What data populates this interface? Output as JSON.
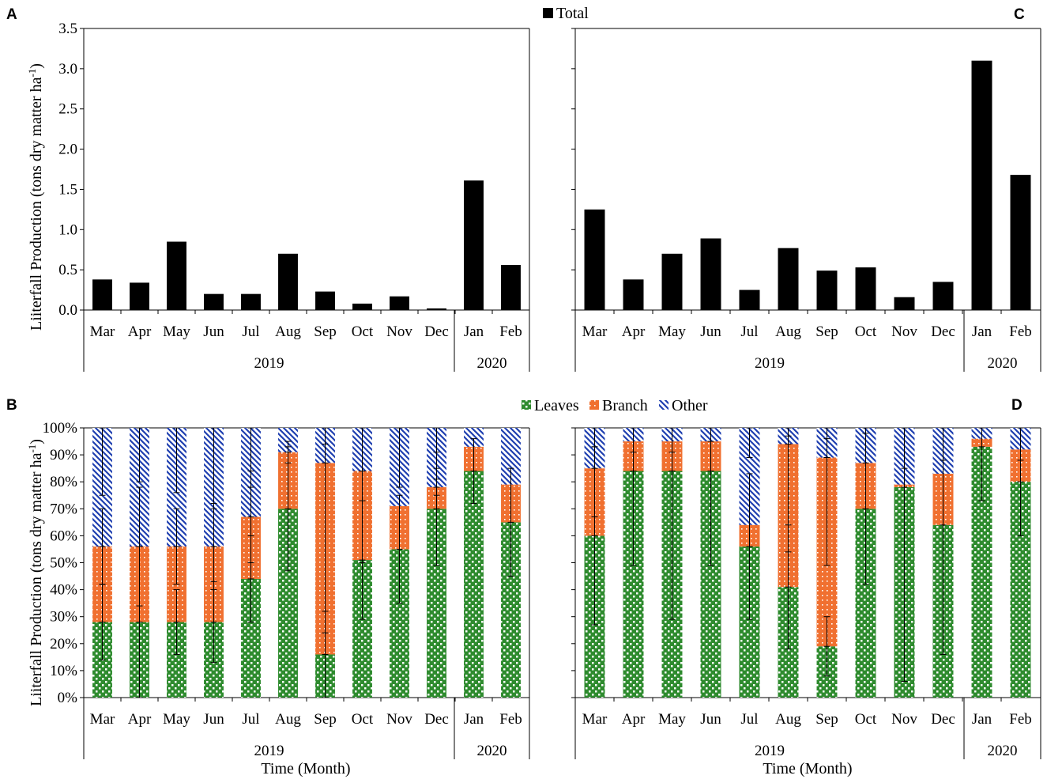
{
  "colors": {
    "total": "#000000",
    "leaves": "#2e8b2e",
    "branch": "#f07030",
    "other": "#1f3fb0",
    "axis": "#000000"
  },
  "legend_top": {
    "total": "Total"
  },
  "legend_bottom": {
    "leaves": "Leaves",
    "branch": "Branch",
    "other": "Other"
  },
  "y_label": "Liiterfall Production (tons dry matter ha",
  "y_label_sup": "-1",
  "y_label_close": ")",
  "x_label": "Time (Month)",
  "years": [
    "2019",
    "2020"
  ],
  "chart_data": [
    {
      "panel": "A",
      "type": "bar",
      "categories": [
        "Mar",
        "Apr",
        "May",
        "Jun",
        "Jul",
        "Aug",
        "Sep",
        "Oct",
        "Nov",
        "Dec",
        "Jan",
        "Feb"
      ],
      "series": [
        {
          "name": "Total",
          "values": [
            0.38,
            0.34,
            0.85,
            0.2,
            0.2,
            0.7,
            0.23,
            0.08,
            0.17,
            0.02,
            1.61,
            0.56
          ]
        }
      ],
      "ylim": [
        0,
        3.5
      ],
      "yticks": [
        "0.0",
        "0.5",
        "1.0",
        "1.5",
        "2.0",
        "2.5",
        "3.0",
        "3.5"
      ],
      "ylabel": "Liiterfall Production (tons dry matter ha-1)",
      "groups": [
        "2019",
        "2020"
      ]
    },
    {
      "panel": "C",
      "type": "bar",
      "categories": [
        "Mar",
        "Apr",
        "May",
        "Jun",
        "Jul",
        "Aug",
        "Sep",
        "Oct",
        "Nov",
        "Dec",
        "Jan",
        "Feb"
      ],
      "series": [
        {
          "name": "Total",
          "values": [
            1.25,
            0.38,
            0.7,
            0.89,
            0.25,
            0.77,
            0.49,
            0.53,
            0.16,
            0.35,
            3.1,
            1.68
          ]
        }
      ],
      "ylim": [
        0,
        3.5
      ],
      "groups": [
        "2019",
        "2020"
      ]
    },
    {
      "panel": "B",
      "type": "bar",
      "stacked": true,
      "categories": [
        "Mar",
        "Apr",
        "May",
        "Jun",
        "Jul",
        "Aug",
        "Sep",
        "Oct",
        "Nov",
        "Dec",
        "Jan",
        "Feb"
      ],
      "series": [
        {
          "name": "Leaves",
          "values": [
            28,
            28,
            28,
            28,
            44,
            70,
            16,
            51,
            55,
            70,
            84,
            65
          ],
          "error": [
            14,
            28,
            12,
            15,
            16,
            23,
            16,
            22,
            20,
            21,
            12,
            20
          ]
        },
        {
          "name": "Branch",
          "values": [
            28,
            28,
            28,
            28,
            23,
            21,
            71,
            33,
            16,
            8,
            9,
            14
          ],
          "error": [
            14,
            22,
            14,
            16,
            17,
            4,
            63,
            34,
            0,
            3,
            0,
            0
          ]
        },
        {
          "name": "Other",
          "values": [
            44,
            44,
            44,
            44,
            33,
            9,
            13,
            16,
            29,
            22,
            7,
            21
          ],
          "error": [
            25,
            20,
            24,
            30,
            22,
            0,
            6,
            16,
            22,
            15,
            0,
            0
          ]
        }
      ],
      "ylim": [
        0,
        100
      ],
      "yticks": [
        "0%",
        "10%",
        "20%",
        "30%",
        "40%",
        "50%",
        "60%",
        "70%",
        "80%",
        "90%",
        "100%"
      ],
      "ylabel": "Liiterfall Production (tons dry matter ha-1)",
      "xlabel": "Time (Month)",
      "groups": [
        "2019",
        "2020"
      ]
    },
    {
      "panel": "D",
      "type": "bar",
      "stacked": true,
      "categories": [
        "Mar",
        "Apr",
        "May",
        "Jun",
        "Jul",
        "Aug",
        "Sep",
        "Oct",
        "Nov",
        "Dec",
        "Jan",
        "Feb"
      ],
      "series": [
        {
          "name": "Leaves",
          "values": [
            60,
            84,
            84,
            84,
            56,
            41,
            19,
            70,
            78,
            64,
            93,
            80
          ],
          "error": [
            33,
            35,
            55,
            35,
            27,
            23,
            11,
            28,
            72,
            48,
            20,
            20
          ]
        },
        {
          "name": "Branch",
          "values": [
            25,
            11,
            11,
            11,
            8,
            53,
            70,
            17,
            1,
            19,
            3,
            12
          ],
          "error": [
            18,
            0,
            0,
            0,
            0,
            40,
            40,
            0,
            0,
            0,
            0,
            0
          ]
        },
        {
          "name": "Other",
          "values": [
            15,
            5,
            5,
            5,
            36,
            6,
            11,
            13,
            21,
            17,
            4,
            8
          ],
          "error": [
            7,
            9,
            9,
            5,
            11,
            3,
            4,
            13,
            15,
            12,
            0,
            12
          ]
        }
      ],
      "ylim": [
        0,
        100
      ],
      "xlabel": "Time (Month)",
      "groups": [
        "2019",
        "2020"
      ]
    }
  ]
}
